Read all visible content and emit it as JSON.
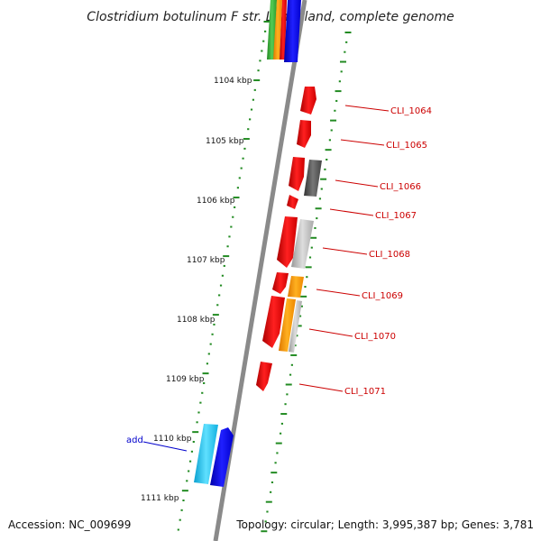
{
  "title": "Clostridium botulinum F str. Langeland, complete genome",
  "footer": {
    "accession": "Accession: NC_009699",
    "topology": "Topology: circular; Length: 3,995,387 bp; Genes: 3,781"
  },
  "scale_marks": [
    "1104 kbp",
    "1105 kbp",
    "1106 kbp",
    "1107 kbp",
    "1108 kbp",
    "1109 kbp",
    "1110 kbp",
    "1111 kbp"
  ],
  "gene_labels": [
    "CLI_1064",
    "CLI_1065",
    "CLI_1066",
    "CLI_1067",
    "CLI_1068",
    "CLI_1069",
    "CLI_1070",
    "CLI_1071"
  ],
  "add_label": "add",
  "colors": {
    "backbone": "#888888",
    "tick": "#228b22",
    "label_line_red": "#cc0000",
    "label_line_blue": "#0000cc",
    "red": "#ee0000",
    "blue": "#0000ee",
    "cyan": "#19c6ee",
    "green": "#33aa33",
    "orange": "#ff9900",
    "gray_dark": "#555555",
    "gray_light": "#bbbbbb"
  }
}
